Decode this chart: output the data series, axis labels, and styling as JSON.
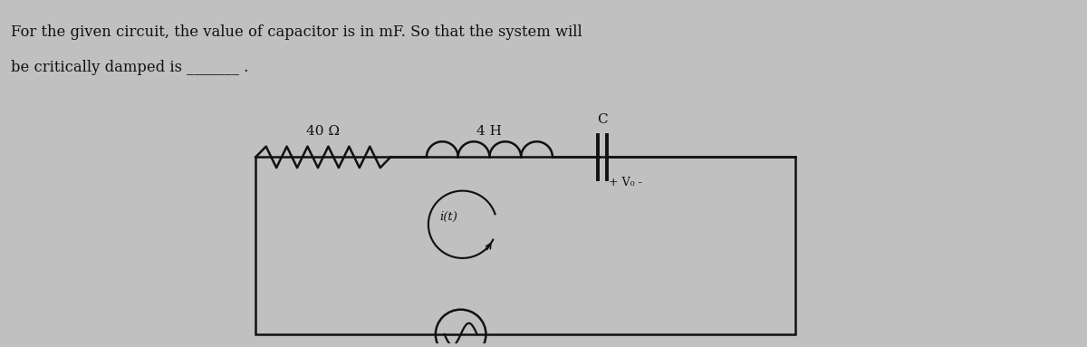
{
  "title_line1": "For the given circuit, the value of capacitor is in mF. So that the system will",
  "title_line2": "be critically damped is _______ .",
  "bg_color": "#c0c0c0",
  "text_color": "#111111",
  "box_color": "#111111",
  "circuit": {
    "resistor_label": "40 Ω",
    "inductor_label": "4 H",
    "capacitor_label": "C",
    "current_label": "i(t)",
    "voltage_label": "+ V₀ -"
  }
}
